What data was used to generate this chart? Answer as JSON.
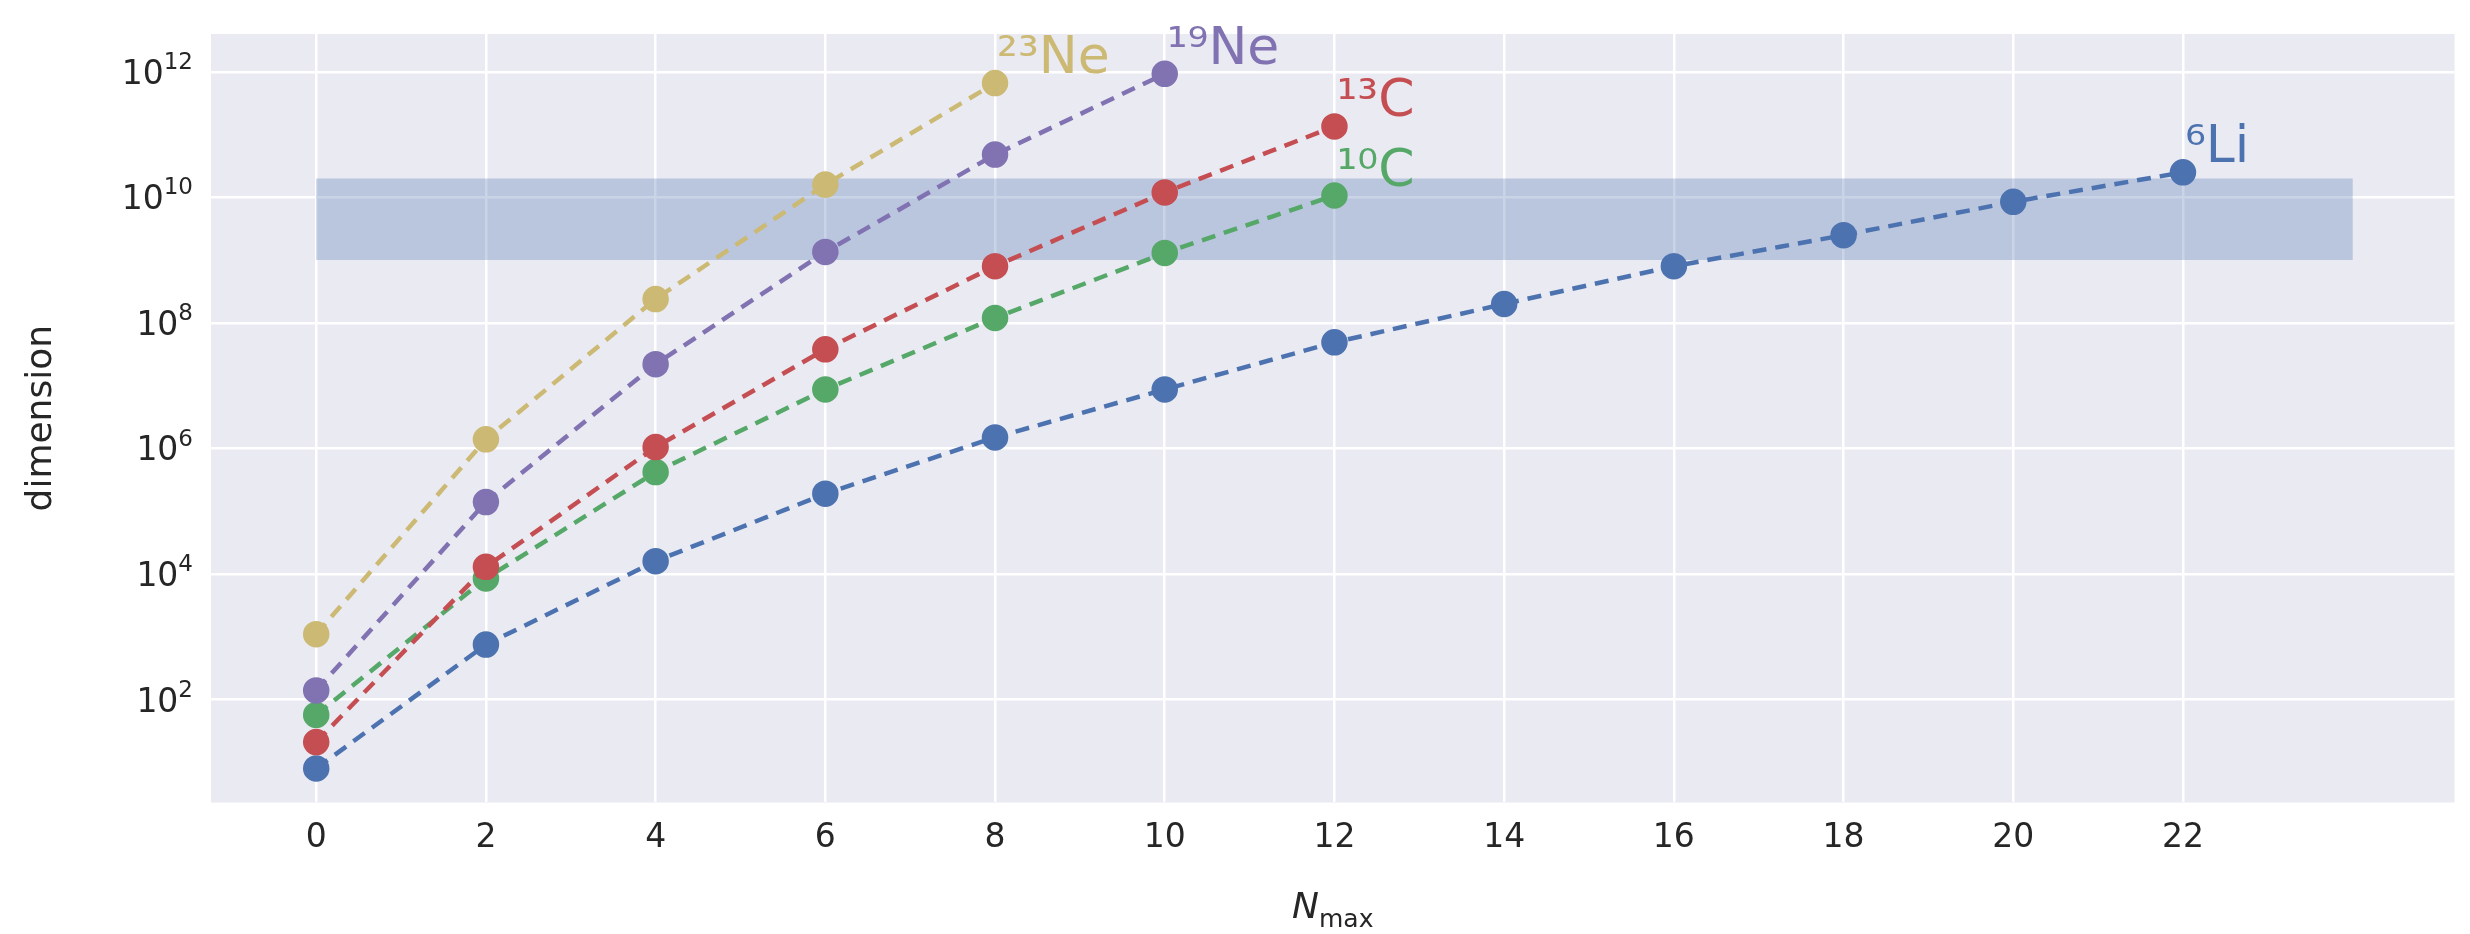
{
  "chart_data": {
    "type": "line",
    "xlabel": "N$_{max}$",
    "ylabel": "dimension",
    "xlim": [
      -1.24,
      25.2
    ],
    "xticks": [
      0,
      2,
      4,
      6,
      8,
      10,
      12,
      14,
      16,
      18,
      20,
      22
    ],
    "ylim": [
      2.3,
      4000000000000.0
    ],
    "log": "y",
    "yticks": [
      {
        "value": 100,
        "label": "10$^{2}$"
      },
      {
        "value": 10000,
        "label": "10$^{4}$"
      },
      {
        "value": 1000000,
        "label": "10$^{6}$"
      },
      {
        "value": 100000000,
        "label": "10$^{8}$"
      },
      {
        "value": 10000000000,
        "label": "10$^{10}$"
      },
      {
        "value": 1000000000000,
        "label": "10$^{12}$"
      }
    ],
    "grid": true,
    "legend": false,
    "marker": "circle",
    "line_style": "dashed",
    "bands": [
      {
        "axis": "y",
        "from": 1000000000.0,
        "to": 20000000000.0,
        "color": "#4c72b0"
      }
    ],
    "series": [
      {
        "name": "²³Ne",
        "color": "#ccb974",
        "x": [
          0,
          2,
          4,
          6,
          8
        ],
        "values": [
          1100,
          1400000,
          240000000,
          16000000000,
          660000000000
        ]
      },
      {
        "name": "¹⁹Ne",
        "color": "#8172b2",
        "x": [
          0,
          2,
          4,
          6,
          8,
          10
        ],
        "values": [
          140,
          140000,
          22000000,
          1350000000,
          48000000000,
          930000000000
        ]
      },
      {
        "name": "¹³C",
        "color": "#c44e52",
        "x": [
          0,
          2,
          4,
          6,
          8,
          10,
          12
        ],
        "values": [
          21,
          13000,
          1050000,
          38000000,
          800000000,
          12000000000,
          135000000000
        ]
      },
      {
        "name": "¹⁰C",
        "color": "#55a868",
        "x": [
          0,
          2,
          4,
          6,
          8,
          10,
          12
        ],
        "values": [
          57,
          8500,
          420000,
          8700000,
          120000000,
          1300000000,
          10700000000
        ]
      },
      {
        "name": "⁶Li",
        "color": "#4c72b0",
        "x": [
          0,
          2,
          4,
          6,
          8,
          10,
          12,
          14,
          16,
          18,
          20,
          22
        ],
        "values": [
          8,
          750,
          16000,
          190000,
          1500000,
          8700000,
          49000000,
          200000000,
          800000000,
          2500000000,
          8500000000,
          25000000000
        ]
      }
    ]
  }
}
